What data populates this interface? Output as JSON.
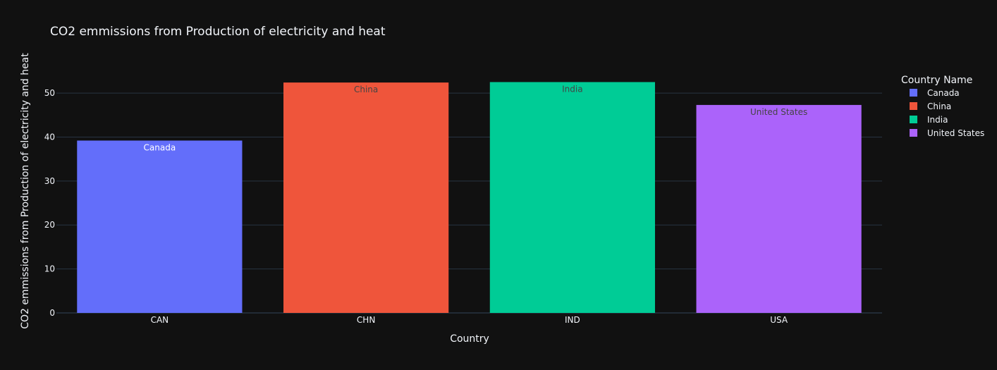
{
  "chart_data": {
    "type": "bar",
    "title": "CO2 emmissions from Production of electricity and heat",
    "xlabel": "Country",
    "ylabel": "CO2 emmissions from Production of electricity and heat",
    "categories": [
      "CAN",
      "CHN",
      "IND",
      "USA"
    ],
    "series": [
      {
        "name": "Canada",
        "category": "CAN",
        "value": 39.2,
        "color": "#636efa",
        "label_color": "#ffffff"
      },
      {
        "name": "China",
        "category": "CHN",
        "value": 52.4,
        "color": "#ef553b",
        "label_color": "#444444"
      },
      {
        "name": "India",
        "category": "IND",
        "value": 52.5,
        "color": "#00cc96",
        "label_color": "#444444"
      },
      {
        "name": "United States",
        "category": "USA",
        "value": 47.3,
        "color": "#ab63fa",
        "label_color": "#444444"
      }
    ],
    "ylim": [
      0,
      55.3
    ],
    "yticks": [
      0,
      10,
      20,
      30,
      40,
      50
    ],
    "grid": true,
    "legend": {
      "title": "Country Name",
      "placement": "right"
    },
    "colors": {
      "background": "#111111",
      "grid": "#283442",
      "text": "#f2f5fa"
    }
  }
}
